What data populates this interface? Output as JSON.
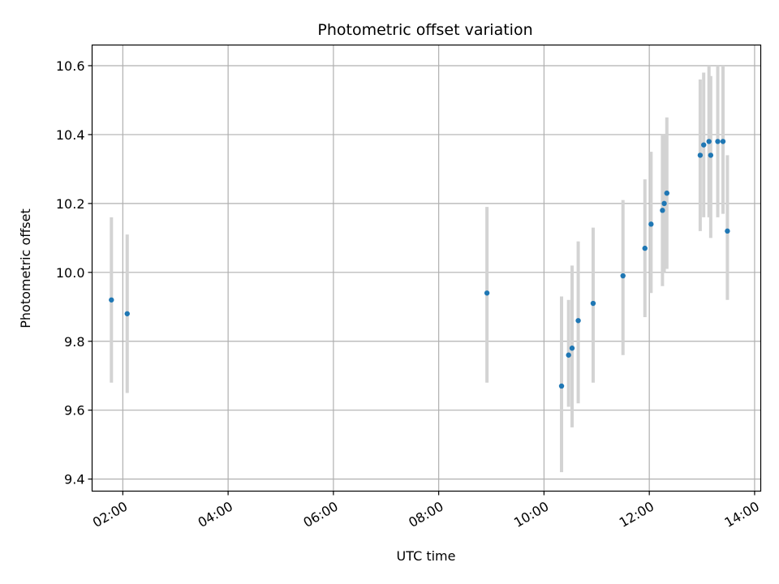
{
  "chart_data": {
    "type": "scatter",
    "title": "Photometric offset variation",
    "xlabel": "UTC time",
    "ylabel": "Photometric offset",
    "x_ticks": [
      "02:00",
      "04:00",
      "06:00",
      "08:00",
      "10:00",
      "12:00",
      "14:00"
    ],
    "y_ticks": [
      "9.4",
      "9.6",
      "9.8",
      "10.0",
      "10.2",
      "10.4",
      "10.6"
    ],
    "xlim": [
      "01:25",
      "14:07"
    ],
    "ylim": [
      9.365,
      10.66
    ],
    "grid": true,
    "colors": {
      "points": "#1f77b4",
      "errorbars": "#d3d3d3",
      "grid": "#b0b0b0"
    },
    "points": [
      {
        "x": "01:47",
        "y": 9.92,
        "yerr_low": 9.68,
        "yerr_high": 10.16
      },
      {
        "x": "02:05",
        "y": 9.88,
        "yerr_low": 9.65,
        "yerr_high": 10.11
      },
      {
        "x": "08:55",
        "y": 9.94,
        "yerr_low": 9.68,
        "yerr_high": 10.19
      },
      {
        "x": "10:20",
        "y": 9.67,
        "yerr_low": 9.42,
        "yerr_high": 9.93
      },
      {
        "x": "10:28",
        "y": 9.76,
        "yerr_low": 9.61,
        "yerr_high": 9.92
      },
      {
        "x": "10:32",
        "y": 9.78,
        "yerr_low": 9.55,
        "yerr_high": 10.02
      },
      {
        "x": "10:39",
        "y": 9.86,
        "yerr_low": 9.62,
        "yerr_high": 10.09
      },
      {
        "x": "10:56",
        "y": 9.91,
        "yerr_low": 9.68,
        "yerr_high": 10.13
      },
      {
        "x": "11:30",
        "y": 9.99,
        "yerr_low": 9.76,
        "yerr_high": 10.21
      },
      {
        "x": "11:55",
        "y": 10.07,
        "yerr_low": 9.87,
        "yerr_high": 10.27
      },
      {
        "x": "12:02",
        "y": 10.14,
        "yerr_low": 9.94,
        "yerr_high": 10.35
      },
      {
        "x": "12:15",
        "y": 10.18,
        "yerr_low": 9.96,
        "yerr_high": 10.4
      },
      {
        "x": "12:17",
        "y": 10.2,
        "yerr_low": 10.0,
        "yerr_high": 10.4
      },
      {
        "x": "12:20",
        "y": 10.23,
        "yerr_low": 10.01,
        "yerr_high": 10.45
      },
      {
        "x": "12:58",
        "y": 10.34,
        "yerr_low": 10.12,
        "yerr_high": 10.56
      },
      {
        "x": "13:02",
        "y": 10.37,
        "yerr_low": 10.16,
        "yerr_high": 10.58
      },
      {
        "x": "13:08",
        "y": 10.38,
        "yerr_low": 10.16,
        "yerr_high": 10.6
      },
      {
        "x": "13:10",
        "y": 10.34,
        "yerr_low": 10.1,
        "yerr_high": 10.57
      },
      {
        "x": "13:18",
        "y": 10.38,
        "yerr_low": 10.16,
        "yerr_high": 10.6
      },
      {
        "x": "13:24",
        "y": 10.38,
        "yerr_low": 10.17,
        "yerr_high": 10.6
      },
      {
        "x": "13:29",
        "y": 10.12,
        "yerr_low": 9.92,
        "yerr_high": 10.34
      }
    ]
  }
}
